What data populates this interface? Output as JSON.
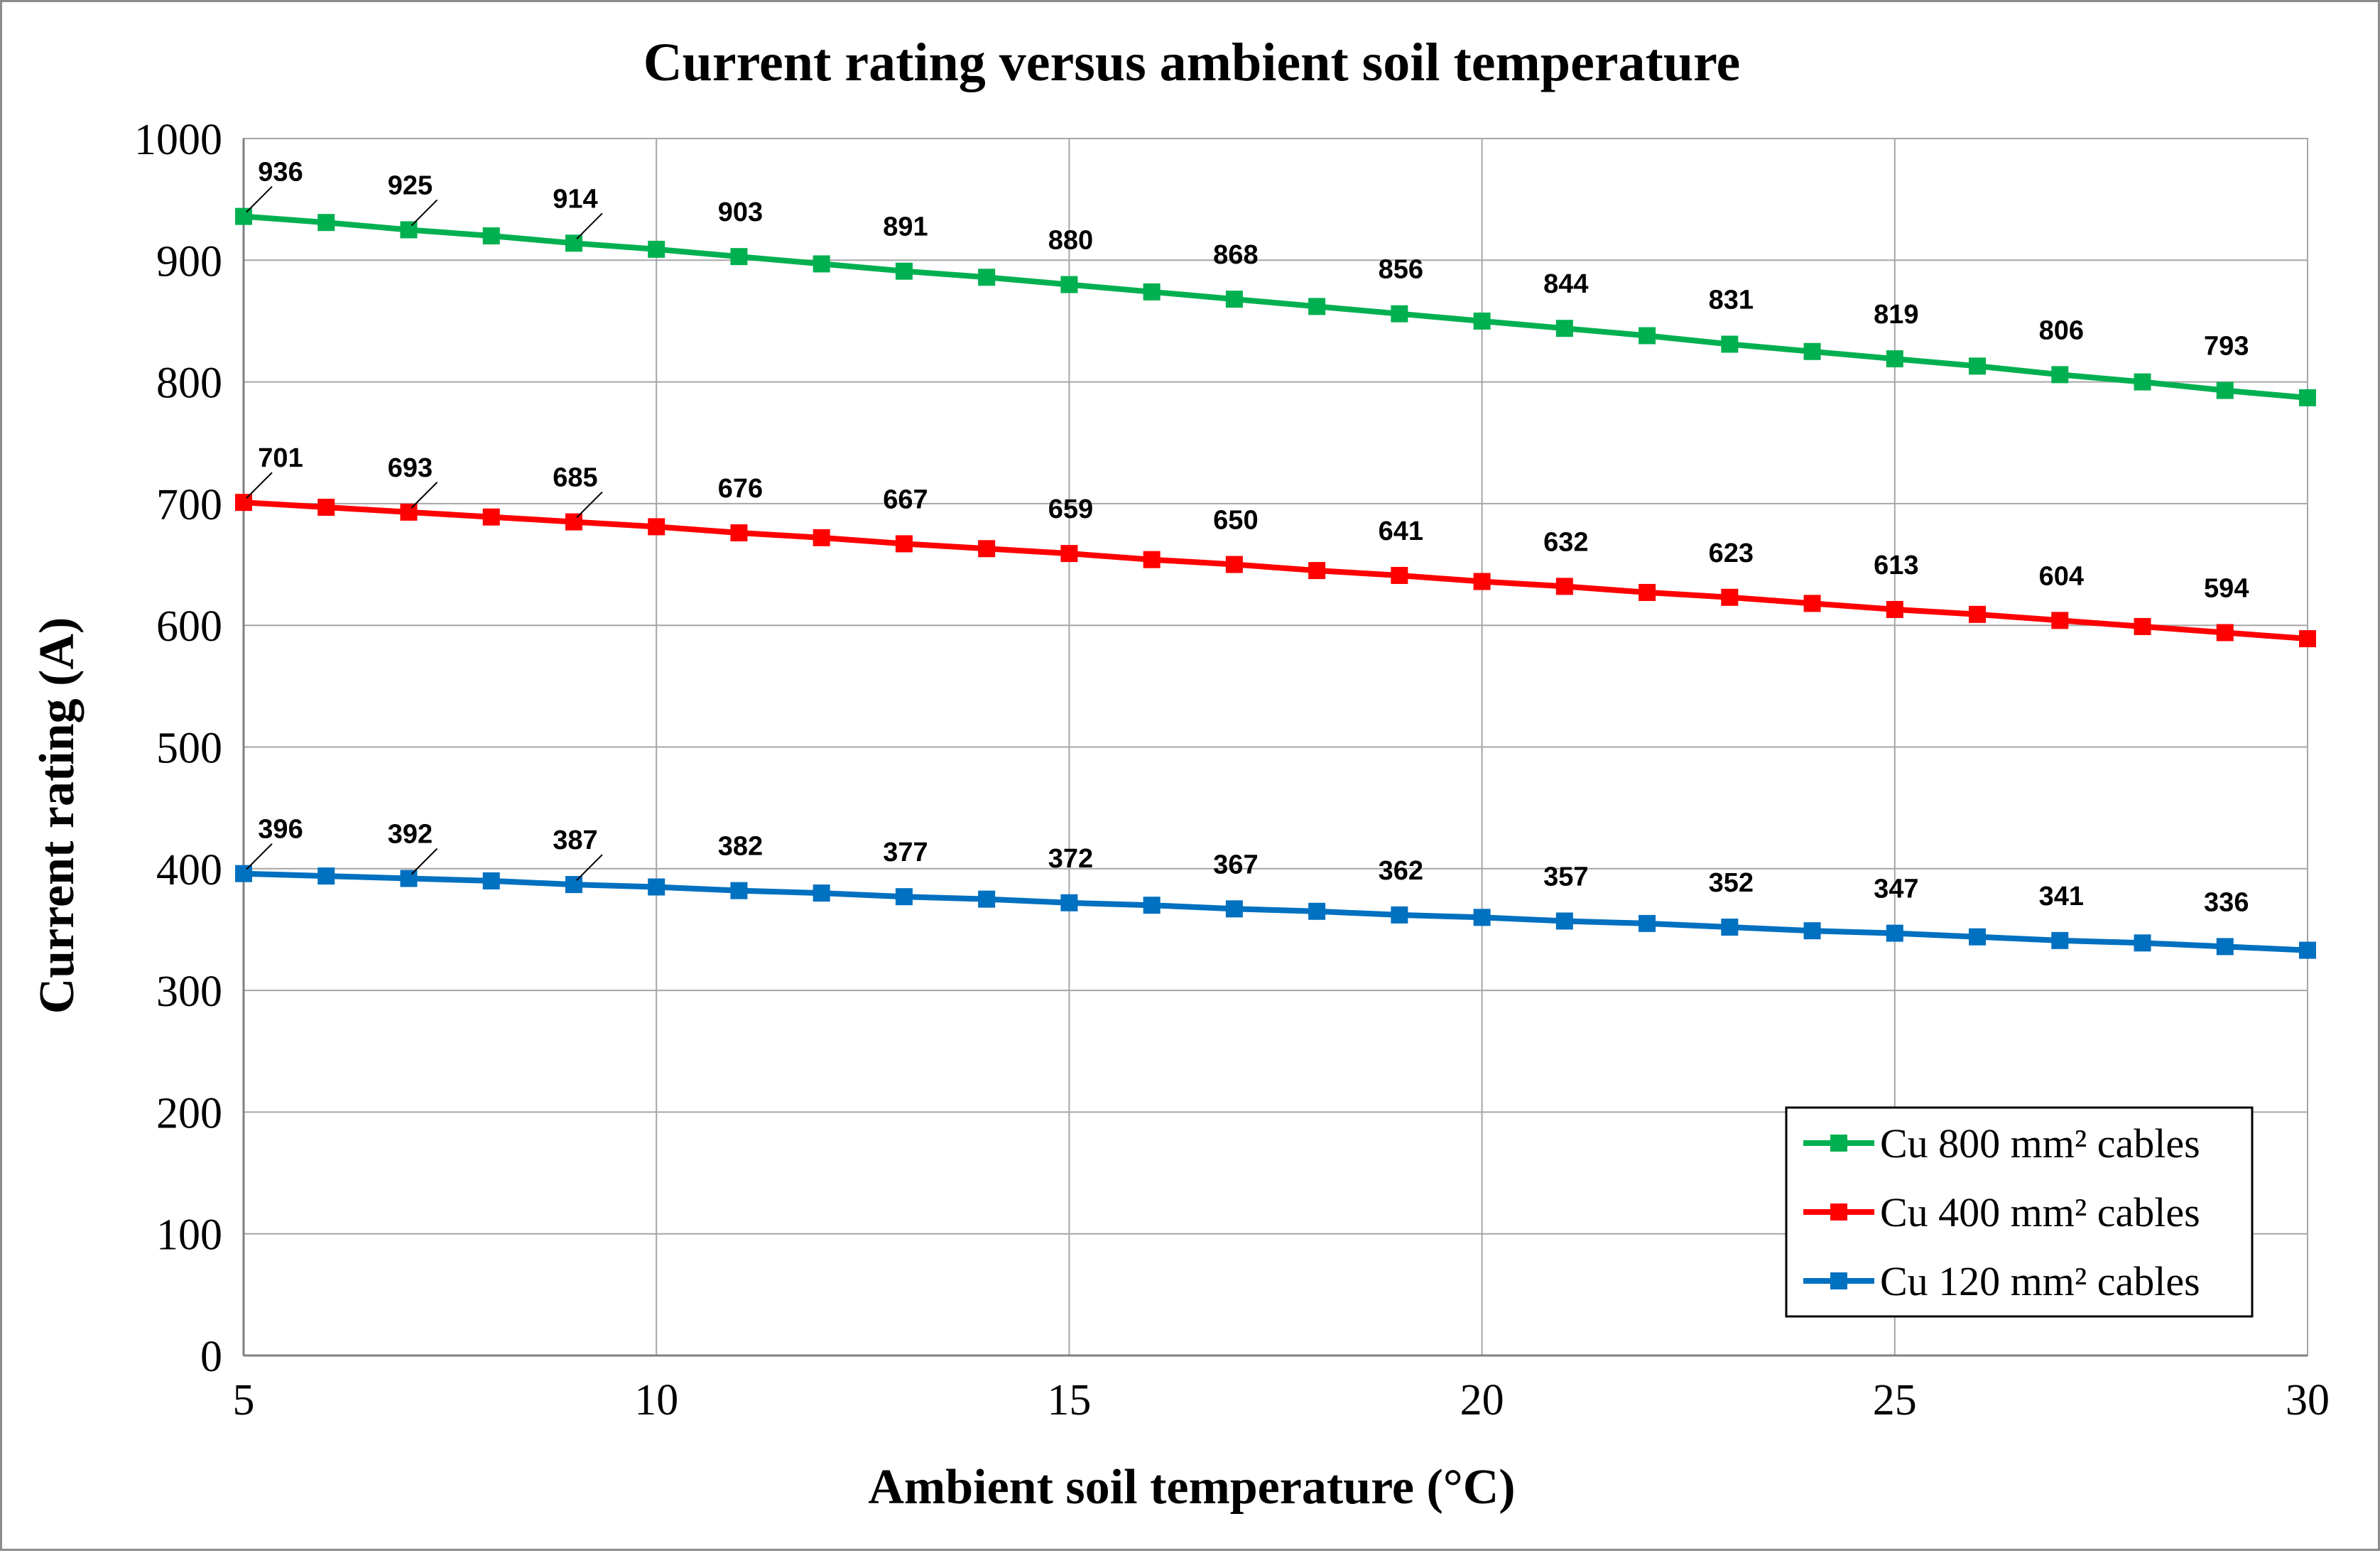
{
  "chart_data": {
    "type": "line",
    "title": "Current rating versus ambient soil temperature",
    "xlabel": "Ambient soil temperature (°C)",
    "ylabel": "Current rating (A)",
    "xlim": [
      5,
      30
    ],
    "ylim": [
      0,
      1000
    ],
    "xticks": [
      "5",
      "10",
      "15",
      "20",
      "25",
      "30"
    ],
    "xtick_values": [
      5,
      10,
      15,
      20,
      25,
      30
    ],
    "yticks": [
      "0",
      "100",
      "200",
      "300",
      "400",
      "500",
      "600",
      "700",
      "800",
      "900",
      "1000"
    ],
    "ytick_values": [
      0,
      100,
      200,
      300,
      400,
      500,
      600,
      700,
      800,
      900,
      1000
    ],
    "grid": true,
    "legend_position": "bottom-right",
    "x": [
      5,
      6,
      7,
      8,
      9,
      10,
      11,
      12,
      13,
      14,
      15,
      16,
      17,
      18,
      19,
      20,
      21,
      22,
      23,
      24,
      25,
      26,
      27,
      28,
      29,
      30
    ],
    "series": [
      {
        "name": "Cu 800 mm² cables",
        "color": "#00b050",
        "values": [
          936,
          931,
          925,
          920,
          914,
          909,
          903,
          897,
          891,
          886,
          880,
          874,
          868,
          862,
          856,
          850,
          844,
          838,
          831,
          825,
          819,
          813,
          806,
          800,
          793,
          787
        ],
        "labels": [
          {
            "x": 5,
            "text": "936"
          },
          {
            "x": 7,
            "text": "925"
          },
          {
            "x": 9,
            "text": "914"
          },
          {
            "x": 11,
            "text": "903"
          },
          {
            "x": 13,
            "text": "891"
          },
          {
            "x": 15,
            "text": "880"
          },
          {
            "x": 17,
            "text": "868"
          },
          {
            "x": 19,
            "text": "856"
          },
          {
            "x": 21,
            "text": "844"
          },
          {
            "x": 23,
            "text": "831"
          },
          {
            "x": 25,
            "text": "819"
          },
          {
            "x": 27,
            "text": "806"
          },
          {
            "x": 29,
            "text": "793"
          }
        ]
      },
      {
        "name": "Cu 400 mm² cables",
        "color": "#ff0000",
        "values": [
          701,
          697,
          693,
          689,
          685,
          681,
          676,
          672,
          667,
          663,
          659,
          654,
          650,
          645,
          641,
          636,
          632,
          627,
          623,
          618,
          613,
          609,
          604,
          599,
          594,
          589
        ],
        "labels": [
          {
            "x": 5,
            "text": "701"
          },
          {
            "x": 7,
            "text": "693"
          },
          {
            "x": 9,
            "text": "685"
          },
          {
            "x": 11,
            "text": "676"
          },
          {
            "x": 13,
            "text": "667"
          },
          {
            "x": 15,
            "text": "659"
          },
          {
            "x": 17,
            "text": "650"
          },
          {
            "x": 19,
            "text": "641"
          },
          {
            "x": 21,
            "text": "632"
          },
          {
            "x": 23,
            "text": "623"
          },
          {
            "x": 25,
            "text": "613"
          },
          {
            "x": 27,
            "text": "604"
          },
          {
            "x": 29,
            "text": "594"
          }
        ]
      },
      {
        "name": "Cu 120 mm² cables",
        "color": "#0070c0",
        "values": [
          396,
          394,
          392,
          390,
          387,
          385,
          382,
          380,
          377,
          375,
          372,
          370,
          367,
          365,
          362,
          360,
          357,
          355,
          352,
          349,
          347,
          344,
          341,
          339,
          336,
          333
        ],
        "labels": [
          {
            "x": 5,
            "text": "396"
          },
          {
            "x": 7,
            "text": "392"
          },
          {
            "x": 9,
            "text": "387"
          },
          {
            "x": 11,
            "text": "382"
          },
          {
            "x": 13,
            "text": "377"
          },
          {
            "x": 15,
            "text": "372"
          },
          {
            "x": 17,
            "text": "367"
          },
          {
            "x": 19,
            "text": "362"
          },
          {
            "x": 21,
            "text": "357"
          },
          {
            "x": 23,
            "text": "352"
          },
          {
            "x": 25,
            "text": "347"
          },
          {
            "x": 27,
            "text": "341"
          },
          {
            "x": 29,
            "text": "336"
          }
        ]
      }
    ]
  }
}
